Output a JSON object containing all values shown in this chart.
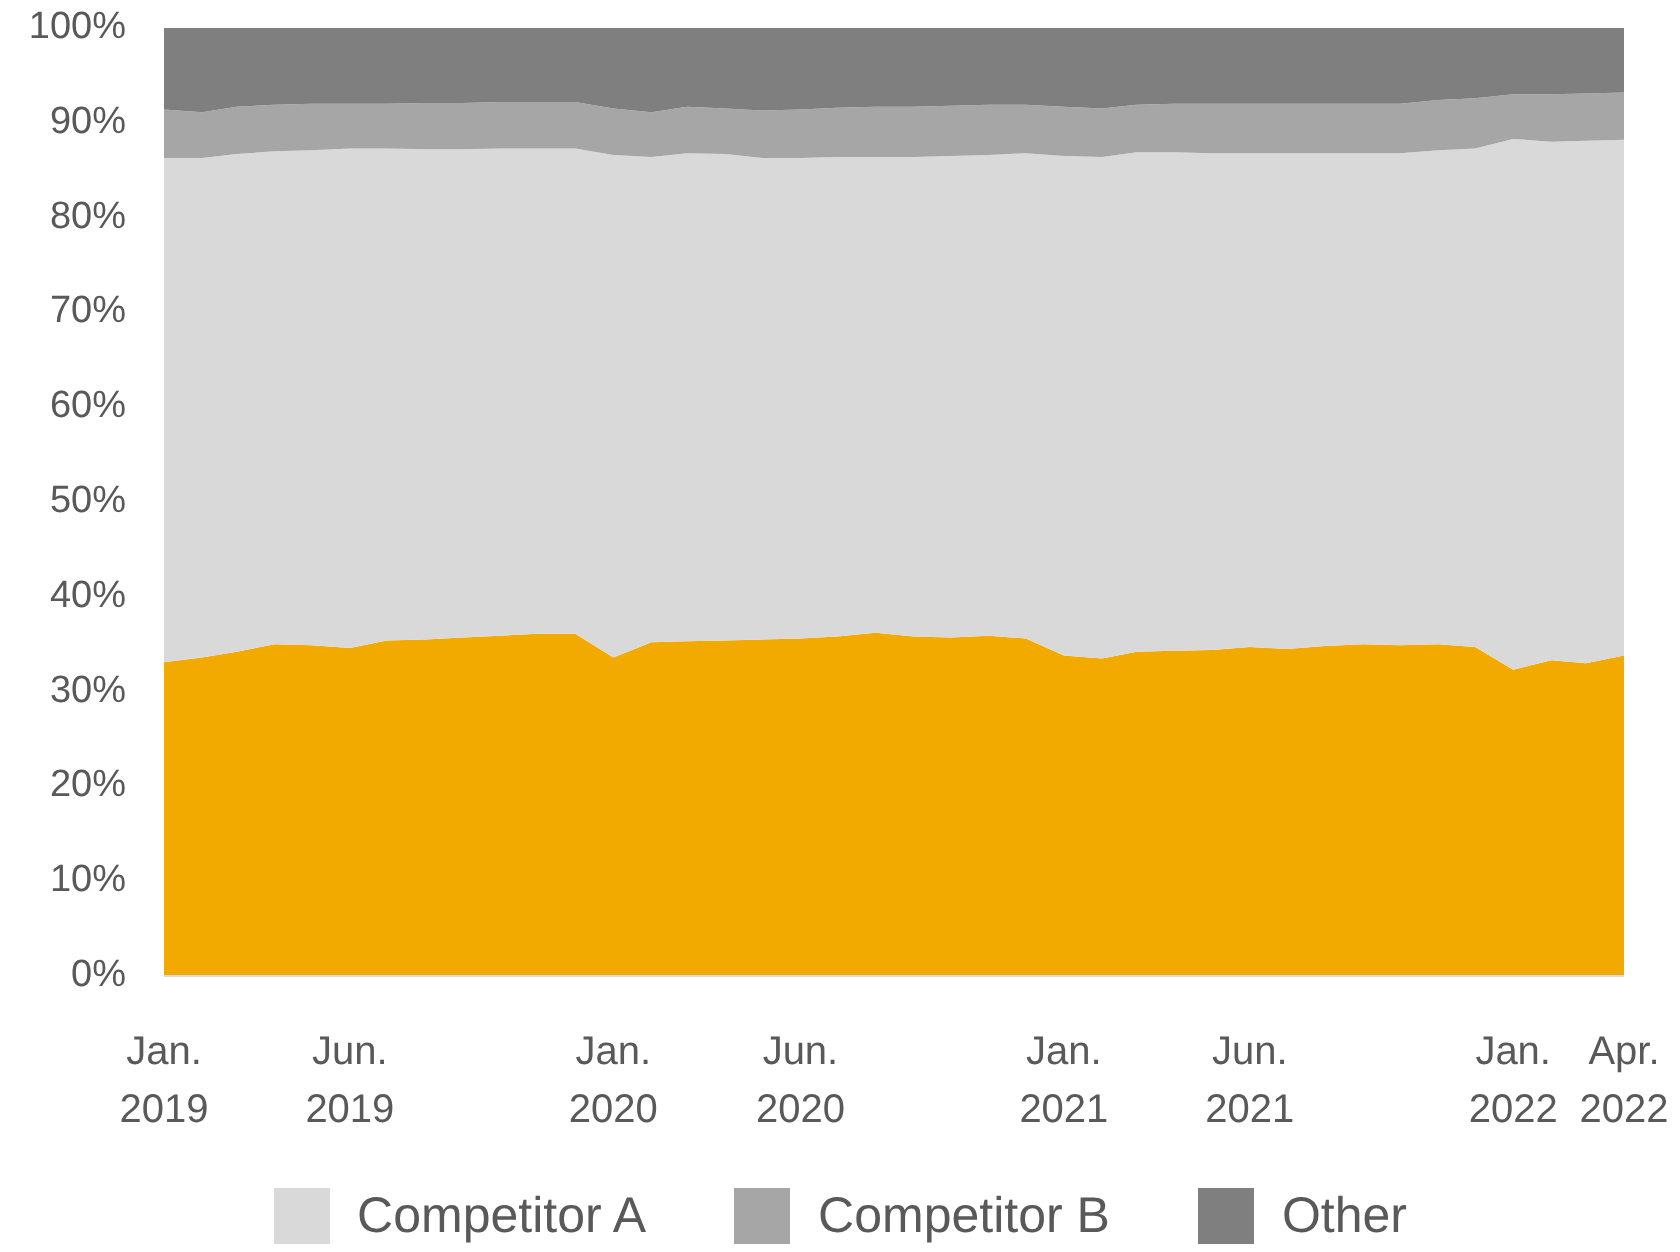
{
  "chart_data": {
    "type": "area",
    "stacked": true,
    "legend": "bottom",
    "x": [
      "2019-01",
      "2019-02",
      "2019-03",
      "2019-04",
      "2019-05",
      "2019-06",
      "2019-07",
      "2019-08",
      "2019-09",
      "2019-10",
      "2019-11",
      "2019-12",
      "2020-01",
      "2020-02",
      "2020-03",
      "2020-04",
      "2020-05",
      "2020-06",
      "2020-07",
      "2020-08",
      "2020-09",
      "2020-10",
      "2020-11",
      "2020-12",
      "2021-01",
      "2021-02",
      "2021-03",
      "2021-04",
      "2021-05",
      "2021-06",
      "2021-07",
      "2021-08",
      "2021-09",
      "2021-10",
      "2021-11",
      "2021-12",
      "2022-01",
      "2022-02",
      "2022-03",
      "2022-04"
    ],
    "xlim": [
      "2019-01",
      "2022-04"
    ],
    "xticks": [
      {
        "value": "2019-01",
        "label": "Jan.\n2019"
      },
      {
        "value": "2019-06",
        "label": "Jun.\n2019"
      },
      {
        "value": "2020-01",
        "label": "Jan.\n2020"
      },
      {
        "value": "2020-06",
        "label": "Jun.\n2020"
      },
      {
        "value": "2021-01",
        "label": "Jan.\n2021"
      },
      {
        "value": "2021-06",
        "label": "Jun.\n2021"
      },
      {
        "value": "2022-01",
        "label": "Jan.\n2022"
      },
      {
        "value": "2022-04",
        "label": "Apr.\n2022"
      }
    ],
    "ylim": [
      0,
      100
    ],
    "yticks": [
      {
        "value": 0,
        "label": "0%"
      },
      {
        "value": 10,
        "label": "10%"
      },
      {
        "value": 20,
        "label": "20%"
      },
      {
        "value": 30,
        "label": "30%"
      },
      {
        "value": 40,
        "label": "40%"
      },
      {
        "value": 50,
        "label": "50%"
      },
      {
        "value": 60,
        "label": "60%"
      },
      {
        "value": 70,
        "label": "70%"
      },
      {
        "value": 80,
        "label": "80%"
      },
      {
        "value": 90,
        "label": "90%"
      },
      {
        "value": 100,
        "label": "100%"
      }
    ],
    "series": [
      {
        "color": "#f2a900",
        "values": [
          33.1,
          33.6,
          34.2,
          35.0,
          34.9,
          34.6,
          35.4,
          35.5,
          35.7,
          35.9,
          36.1,
          36.1,
          33.6,
          35.2,
          35.3,
          35.4,
          35.5,
          35.6,
          35.8,
          36.2,
          35.8,
          35.7,
          35.9,
          35.6,
          33.8,
          33.5,
          34.2,
          34.3,
          34.4,
          34.7,
          34.5,
          34.8,
          35.0,
          34.9,
          35.0,
          34.7,
          32.3,
          33.3,
          33.0,
          33.8
        ]
      },
      {
        "name": "Competitor A",
        "color": "#d9d9d9",
        "values": [
          53.2,
          52.7,
          52.5,
          52.0,
          52.2,
          52.7,
          51.9,
          51.7,
          51.5,
          51.4,
          51.2,
          51.2,
          53.0,
          51.2,
          51.5,
          51.3,
          50.8,
          50.7,
          50.6,
          50.2,
          50.6,
          50.8,
          50.7,
          51.2,
          52.7,
          52.9,
          52.7,
          52.6,
          52.4,
          52.1,
          52.3,
          52.0,
          51.8,
          51.9,
          52.1,
          52.6,
          56.0,
          54.7,
          55.1,
          54.4
        ]
      },
      {
        "name": "Competitor B",
        "color": "#a6a6a6",
        "values": [
          5.1,
          4.8,
          5.0,
          4.9,
          4.9,
          4.7,
          4.7,
          4.9,
          4.9,
          4.9,
          4.9,
          4.9,
          4.9,
          4.7,
          4.9,
          4.8,
          5.0,
          5.1,
          5.2,
          5.3,
          5.3,
          5.3,
          5.3,
          5.1,
          5.2,
          5.1,
          5.0,
          5.1,
          5.2,
          5.2,
          5.2,
          5.2,
          5.2,
          5.2,
          5.3,
          5.3,
          4.7,
          5.0,
          5.0,
          5.0
        ]
      },
      {
        "name": "Other",
        "color": "#7f7f7f",
        "values": [
          8.6,
          8.9,
          8.3,
          8.1,
          8.0,
          8.0,
          8.0,
          7.9,
          7.9,
          7.8,
          7.8,
          7.8,
          8.5,
          8.9,
          8.3,
          8.5,
          8.7,
          8.6,
          8.4,
          8.3,
          8.3,
          8.2,
          8.1,
          8.1,
          8.3,
          8.5,
          8.1,
          8.0,
          8.0,
          8.0,
          8.0,
          8.0,
          8.0,
          8.0,
          7.6,
          7.4,
          7.0,
          7.0,
          6.9,
          6.8
        ]
      }
    ]
  }
}
